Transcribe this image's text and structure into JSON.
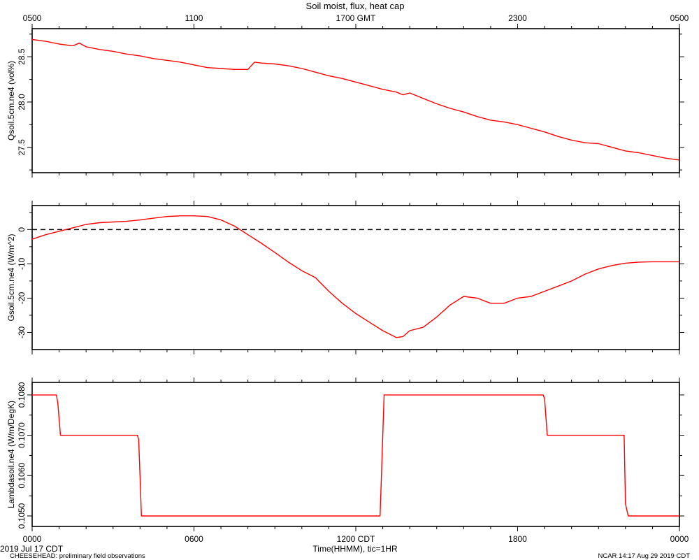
{
  "chart_data": [
    {
      "type": "line",
      "title": "Soil moist, flux, heat cap",
      "top_axis_ticks": [
        "0500",
        "1100",
        "1700 GMT",
        "2300",
        "0500"
      ],
      "ylabel": "Qsoil.5cm.ne4 (vol%)",
      "ylim": [
        27.22,
        28.81
      ],
      "yticks": [
        "27.5",
        "28.0",
        "28.5"
      ],
      "series": [
        {
          "color": "#ff0000",
          "x": [
            0.0,
            0.5,
            1.0,
            1.5,
            1.75,
            2.0,
            2.5,
            3.0,
            3.5,
            4.0,
            4.5,
            5.0,
            5.5,
            6.0,
            6.5,
            7.0,
            7.5,
            8.0,
            8.15,
            8.25,
            8.5,
            9.0,
            9.5,
            10.0,
            10.5,
            11.0,
            11.5,
            12.0,
            12.5,
            13.0,
            13.5,
            13.75,
            14.0,
            14.25,
            14.5,
            15.0,
            15.5,
            16.0,
            16.5,
            17.0,
            17.5,
            18.0,
            18.5,
            19.0,
            19.5,
            20.0,
            20.5,
            21.0,
            21.5,
            22.0,
            22.5,
            23.0,
            23.5,
            24.0
          ],
          "values": [
            28.69,
            28.67,
            28.64,
            28.62,
            28.65,
            28.61,
            28.58,
            28.56,
            28.53,
            28.51,
            28.48,
            28.46,
            28.44,
            28.41,
            28.38,
            28.37,
            28.36,
            28.36,
            28.41,
            28.44,
            28.43,
            28.42,
            28.4,
            28.37,
            28.33,
            28.29,
            28.26,
            28.22,
            28.18,
            28.14,
            28.11,
            28.08,
            28.1,
            28.07,
            28.04,
            27.98,
            27.93,
            27.89,
            27.84,
            27.8,
            27.78,
            27.75,
            27.71,
            27.67,
            27.62,
            27.58,
            27.55,
            27.54,
            27.5,
            27.46,
            27.44,
            27.41,
            27.38,
            27.36
          ]
        }
      ]
    },
    {
      "type": "line",
      "ylabel": "Gsoil.5cm.ne4 (W/m^2)",
      "ylim": [
        -35.0,
        7.0
      ],
      "yticks": [
        "-30",
        "-20",
        "-10",
        "0"
      ],
      "reference_line": 0,
      "series": [
        {
          "color": "#ff0000",
          "x": [
            0.0,
            0.5,
            1.0,
            1.5,
            2.0,
            2.5,
            3.0,
            3.5,
            4.0,
            4.5,
            5.0,
            5.5,
            6.0,
            6.5,
            7.0,
            7.5,
            8.0,
            8.5,
            9.0,
            9.5,
            10.0,
            10.5,
            11.0,
            11.5,
            12.0,
            12.5,
            13.0,
            13.5,
            13.75,
            14.0,
            14.5,
            15.0,
            15.5,
            16.0,
            16.5,
            17.0,
            17.5,
            18.0,
            18.5,
            19.0,
            19.5,
            20.0,
            20.5,
            21.0,
            21.5,
            22.0,
            22.5,
            23.0,
            23.5,
            24.0
          ],
          "values": [
            -2.8,
            -1.5,
            -0.5,
            0.5,
            1.5,
            2.0,
            2.2,
            2.4,
            2.8,
            3.3,
            3.8,
            4.0,
            4.0,
            3.8,
            2.8,
            1.0,
            -1.5,
            -4.0,
            -6.7,
            -9.5,
            -12.0,
            -14.0,
            -18.0,
            -21.5,
            -24.5,
            -27.0,
            -29.5,
            -31.5,
            -31.2,
            -29.5,
            -28.5,
            -25.5,
            -22.0,
            -19.5,
            -20.0,
            -21.5,
            -21.5,
            -20.0,
            -19.5,
            -18.0,
            -16.5,
            -15.0,
            -13.0,
            -11.5,
            -10.5,
            -9.8,
            -9.5,
            -9.4,
            -9.4,
            -9.4
          ]
        }
      ]
    },
    {
      "type": "line",
      "ylabel": "Lambdasoil.ne4 (W/m/DegK)",
      "ylim": [
        0.10474,
        0.10831
      ],
      "yticks": [
        "0.1050",
        "0.1060",
        "0.1070",
        "0.1080"
      ],
      "xlim": [
        0,
        24
      ],
      "xticks": [
        "0000",
        "0600",
        "1200 CDT",
        "1800",
        "0000"
      ],
      "xlabel": "Time(HHMM), tic=1HR",
      "date": "2019 Jul 17 CDT",
      "series": [
        {
          "color": "#ff0000",
          "x": [
            0.0,
            0.9,
            0.95,
            1.05,
            1.1,
            3.9,
            3.95,
            4.0,
            4.05,
            4.1,
            12.9,
            12.95,
            13.05,
            13.1,
            18.95,
            19.0,
            19.1,
            19.15,
            21.95,
            22.0,
            22.1,
            22.15,
            24.0
          ],
          "values": [
            0.108,
            0.108,
            0.1078,
            0.107,
            0.107,
            0.107,
            0.1069,
            0.106,
            0.105,
            0.105,
            0.105,
            0.106,
            0.108,
            0.108,
            0.108,
            0.1079,
            0.107,
            0.107,
            0.107,
            0.1053,
            0.105,
            0.105,
            0.105
          ]
        }
      ]
    }
  ],
  "footer": {
    "left": "CHEESEHEAD: preliminary field observations",
    "right": "NCAR 14:17 Aug 29 2019 CDT"
  }
}
